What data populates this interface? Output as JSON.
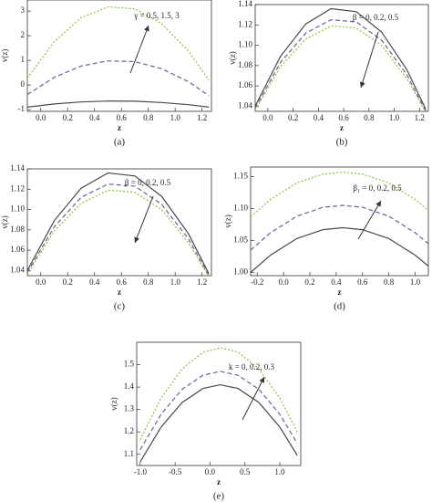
{
  "chart_data": [
    {
      "type": "line",
      "caption": "(a)",
      "xlabel": "z",
      "ylabel": "v(z)",
      "annotation": "γ = 0.5, 1.5, 3",
      "x": [
        -0.1,
        0.1,
        0.3,
        0.5,
        0.7,
        0.9,
        1.1,
        1.25
      ],
      "series": [
        {
          "color": "#4a4a4a",
          "dash": "solid",
          "values": [
            -0.9,
            -0.77,
            -0.69,
            -0.65,
            -0.66,
            -0.71,
            -0.8,
            -0.9
          ]
        },
        {
          "color": "#7a5a9a",
          "dash": "dashed",
          "values": [
            -0.39,
            0.31,
            0.77,
            0.98,
            0.95,
            0.66,
            0.13,
            -0.43
          ]
        },
        {
          "color": "#8ac43a",
          "dash": "dotted",
          "values": [
            0.28,
            1.76,
            2.73,
            3.17,
            3.09,
            2.49,
            1.37,
            0.2
          ]
        }
      ],
      "xlim": [
        -0.1,
        1.27
      ],
      "xticks": [
        {
          "value": 0,
          "label": "0.0"
        },
        0.2,
        0.4,
        0.6,
        0.8,
        {
          "value": 1,
          "label": "1.0"
        },
        1.2
      ],
      "ylim": [
        -1.07,
        3.45
      ],
      "yticks": [
        -1,
        0,
        1,
        2,
        3
      ]
    },
    {
      "type": "line",
      "caption": "(b)",
      "xlabel": "z",
      "ylabel": "v(z)",
      "annotation": "β = 0, 0.2, 0.5",
      "x": [
        -0.1,
        0.1,
        0.3,
        0.5,
        0.7,
        0.9,
        1.1,
        1.25
      ],
      "series": [
        {
          "color": "#4a4a4a",
          "dash": "solid",
          "values": [
            1.04,
            1.089,
            1.121,
            1.136,
            1.133,
            1.113,
            1.076,
            1.037
          ]
        },
        {
          "color": "#7a5a9a",
          "dash": "dashed",
          "values": [
            1.038,
            1.083,
            1.112,
            1.125,
            1.123,
            1.105,
            1.071,
            1.035
          ]
        },
        {
          "color": "#8ac43a",
          "dash": "dotted",
          "values": [
            1.036,
            1.079,
            1.106,
            1.119,
            1.117,
            1.1,
            1.067,
            1.034
          ]
        }
      ],
      "xlim": [
        -0.1,
        1.27
      ],
      "xticks": [
        {
          "value": 0,
          "label": "0.0"
        },
        0.2,
        0.4,
        0.6,
        0.8,
        {
          "value": 1,
          "label": "1.0"
        },
        1.2
      ],
      "ylim": [
        1.035,
        1.14
      ],
      "yticks": [
        1.04,
        1.06,
        1.08,
        {
          "value": 1.1,
          "label": "1.10"
        },
        1.12,
        1.14
      ]
    },
    {
      "type": "line",
      "caption": "(c)",
      "xlabel": "z",
      "ylabel": "v(z)",
      "annotation": "β = 0, 0.2, 0.5",
      "x": [
        -0.1,
        0.1,
        0.3,
        0.5,
        0.7,
        0.9,
        1.1,
        1.25
      ],
      "series": [
        {
          "color": "#4a4a4a",
          "dash": "solid",
          "values": [
            1.04,
            1.089,
            1.121,
            1.136,
            1.133,
            1.113,
            1.076,
            1.037
          ]
        },
        {
          "color": "#7a5a9a",
          "dash": "dashed",
          "values": [
            1.038,
            1.083,
            1.112,
            1.125,
            1.123,
            1.105,
            1.071,
            1.035
          ]
        },
        {
          "color": "#8ac43a",
          "dash": "dotted",
          "values": [
            1.036,
            1.079,
            1.106,
            1.119,
            1.117,
            1.1,
            1.067,
            1.034
          ]
        }
      ],
      "xlim": [
        -0.1,
        1.27
      ],
      "xticks": [
        {
          "value": 0,
          "label": "0.0"
        },
        0.2,
        0.4,
        0.6,
        0.8,
        {
          "value": 1,
          "label": "1.0"
        },
        1.2
      ],
      "ylim": [
        1.035,
        1.14
      ],
      "yticks": [
        1.04,
        1.06,
        1.08,
        {
          "value": 1.1,
          "label": "1.10"
        },
        1.12,
        1.14
      ]
    },
    {
      "type": "line",
      "caption": "(d)",
      "xlabel": "z",
      "ylabel": "v(z)",
      "annotation": "β₁ = 0, 0.2, 0.5",
      "x": [
        -0.25,
        -0.1,
        0.1,
        0.3,
        0.45,
        0.6,
        0.8,
        1.0,
        1.1
      ],
      "series": [
        {
          "color": "#4a4a4a",
          "dash": "solid",
          "values": [
            1.0,
            1.027,
            1.053,
            1.067,
            1.07,
            1.067,
            1.053,
            1.027,
            1.01
          ]
        },
        {
          "color": "#7a5a9a",
          "dash": "dashed",
          "values": [
            1.035,
            1.062,
            1.088,
            1.102,
            1.105,
            1.102,
            1.088,
            1.062,
            1.045
          ]
        },
        {
          "color": "#8ac43a",
          "dash": "dotted",
          "values": [
            1.087,
            1.114,
            1.14,
            1.154,
            1.157,
            1.154,
            1.14,
            1.114,
            1.097
          ]
        }
      ],
      "xlim": [
        -0.25,
        1.1
      ],
      "xticks": [
        -0.2,
        {
          "value": 0,
          "label": "0.0"
        },
        0.2,
        0.4,
        0.6,
        0.8,
        {
          "value": 1,
          "label": "1.0"
        }
      ],
      "ylim": [
        0.995,
        1.165
      ],
      "yticks": [
        {
          "value": 1,
          "label": "1.00"
        },
        1.05,
        {
          "value": 1.1,
          "label": "1.10"
        },
        1.15
      ]
    },
    {
      "type": "line",
      "caption": "(e)",
      "xlabel": "z",
      "ylabel": "v(z)",
      "annotation": "k = 0, 0.2, 0.3",
      "x": [
        -1,
        -0.7,
        -0.4,
        -0.1,
        0.15,
        0.4,
        0.7,
        1.0,
        1.25
      ],
      "series": [
        {
          "color": "#4a4a4a",
          "dash": "solid",
          "values": [
            1.066,
            1.222,
            1.331,
            1.394,
            1.41,
            1.394,
            1.331,
            1.222,
            1.095
          ]
        },
        {
          "color": "#7a5a9a",
          "dash": "dashed",
          "values": [
            1.12,
            1.279,
            1.39,
            1.453,
            1.47,
            1.453,
            1.39,
            1.279,
            1.149
          ]
        },
        {
          "color": "#8ac43a",
          "dash": "dotted",
          "values": [
            1.165,
            1.351,
            1.481,
            1.556,
            1.575,
            1.556,
            1.481,
            1.351,
            1.2
          ]
        }
      ],
      "xlim": [
        -1.05,
        1.3
      ],
      "xticks": [
        {
          "value": -1,
          "label": "-1.0"
        },
        -0.5,
        {
          "value": 0,
          "label": "0.0"
        },
        0.5,
        {
          "value": 1,
          "label": "1.0"
        }
      ],
      "ylim": [
        1.05,
        1.6
      ],
      "yticks": [
        1.1,
        1.2,
        1.3,
        1.4,
        1.5
      ]
    }
  ]
}
